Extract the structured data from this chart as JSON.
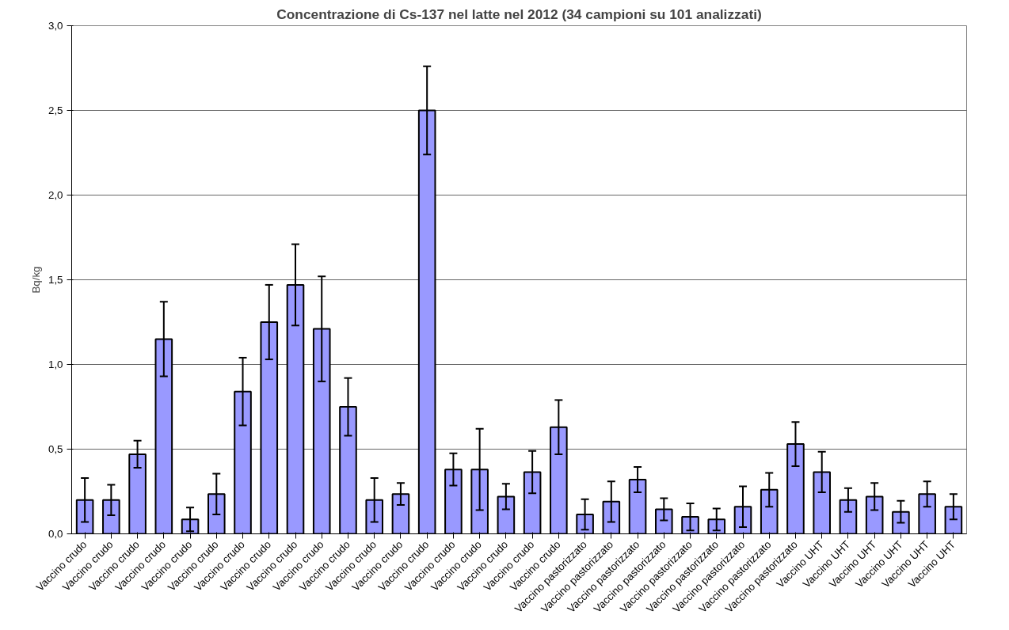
{
  "chart_data": {
    "type": "bar",
    "title": "Concentrazione di Cs-137 nel latte nel 2012 (34 campioni su 101 analizzati)",
    "ylabel": "Bq/kg",
    "categories": [
      "Vaccino crudo",
      "Vaccino crudo",
      "Vaccino crudo",
      "Vaccino crudo",
      "Vaccino crudo",
      "Vaccino crudo",
      "Vaccino crudo",
      "Vaccino crudo",
      "Vaccino crudo",
      "Vaccino crudo",
      "Vaccino crudo",
      "Vaccino crudo",
      "Vaccino crudo",
      "Vaccino crudo",
      "Vaccino crudo",
      "Vaccino crudo",
      "Vaccino crudo",
      "Vaccino crudo",
      "Vaccino crudo",
      "Vaccino pastorizzato",
      "Vaccino pastorizzato",
      "Vaccino pastorizzato",
      "Vaccino pastorizzato",
      "Vaccino pastorizzato",
      "Vaccino pastorizzato",
      "Vaccino pastorizzato",
      "Vaccino pastorizzato",
      "Vaccino pastorizzato",
      "Vaccino UHT",
      "Vaccino UHT",
      "Vaccino UHT",
      "Vaccino UHT",
      "Vaccino UHT",
      "Vaccino UHT"
    ],
    "values": [
      0.2,
      0.2,
      0.47,
      1.15,
      0.085,
      0.235,
      0.84,
      1.25,
      1.47,
      1.21,
      0.75,
      0.2,
      0.235,
      2.5,
      0.38,
      0.38,
      0.22,
      0.365,
      0.63,
      0.115,
      0.19,
      0.32,
      0.145,
      0.1,
      0.085,
      0.16,
      0.26,
      0.53,
      0.365,
      0.2,
      0.22,
      0.13,
      0.235,
      0.16
    ],
    "errors": [
      0.13,
      0.09,
      0.08,
      0.22,
      0.07,
      0.12,
      0.2,
      0.22,
      0.24,
      0.31,
      0.17,
      0.13,
      0.065,
      0.26,
      0.095,
      0.24,
      0.075,
      0.125,
      0.16,
      0.09,
      0.12,
      0.075,
      0.065,
      0.08,
      0.065,
      0.12,
      0.1,
      0.13,
      0.12,
      0.07,
      0.08,
      0.065,
      0.075,
      0.075
    ],
    "color": "#9999ff",
    "ylim": [
      0,
      3
    ],
    "yticks": [
      {
        "value": 0,
        "label": "0,0"
      },
      {
        "value": 0.5,
        "label": "0,5"
      },
      {
        "value": 1,
        "label": "1,0"
      },
      {
        "value": 1.5,
        "label": "1,5"
      },
      {
        "value": 2,
        "label": "2,0"
      },
      {
        "value": 2.5,
        "label": "2,5"
      },
      {
        "value": 3,
        "label": "3,0"
      }
    ],
    "grid": "y"
  }
}
